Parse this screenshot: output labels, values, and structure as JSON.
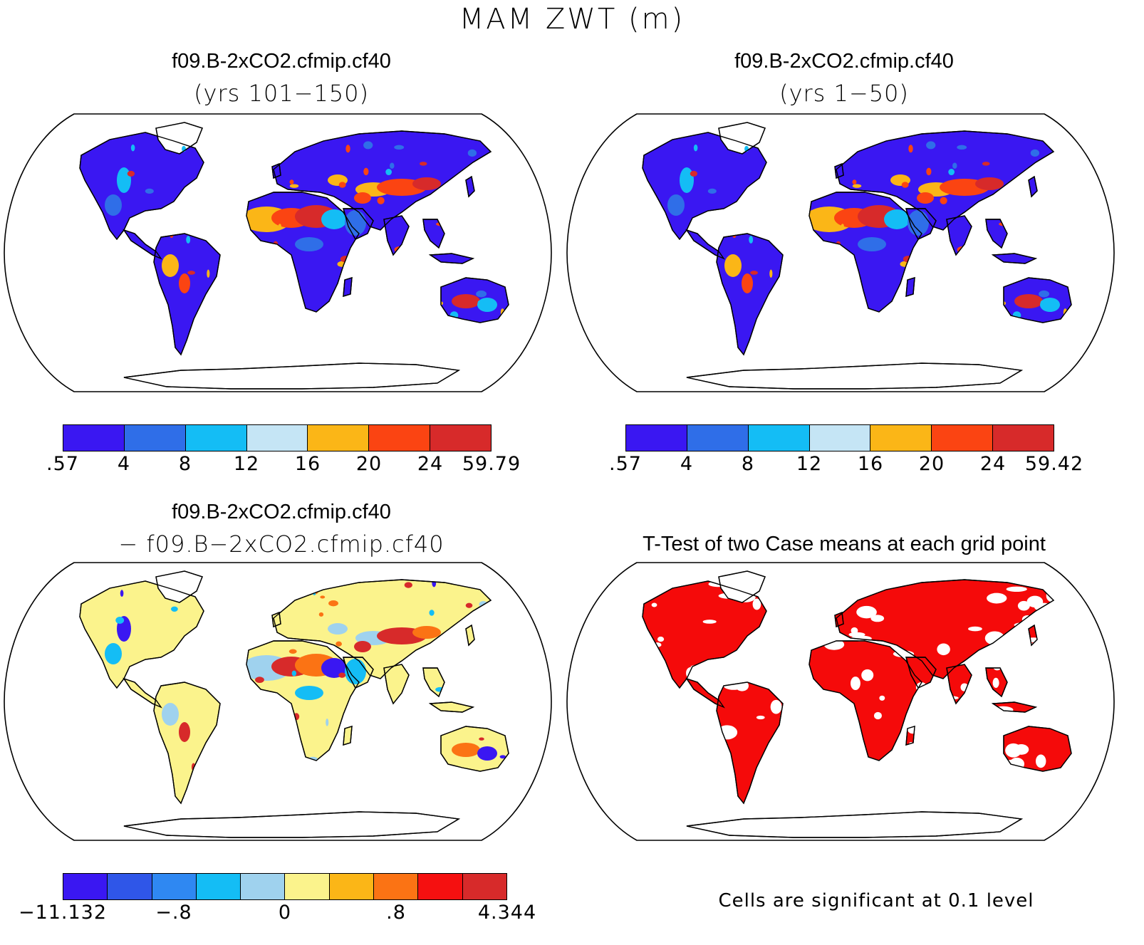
{
  "figure": {
    "title": "MAM ZWT (m)"
  },
  "panels": [
    {
      "id": "case1",
      "title": "f09.B-2xCO2.cfmip.cf40",
      "subtitle": "(yrs 101−150)",
      "colorbar": {
        "colors": [
          "#3a17f2",
          "#2f6ee8",
          "#14bdf5",
          "#c5e5f5",
          "#fbb617",
          "#fb4412",
          "#d72a2a"
        ],
        "labels": [
          ".57",
          "4",
          "8",
          "12",
          "16",
          "20",
          "24",
          "59.79"
        ]
      }
    },
    {
      "id": "case2",
      "title": "f09.B-2xCO2.cfmip.cf40",
      "subtitle": "(yrs 1−50)",
      "colorbar": {
        "colors": [
          "#3a17f2",
          "#2f6ee8",
          "#14bdf5",
          "#c5e5f5",
          "#fbb617",
          "#fb4412",
          "#d72a2a"
        ],
        "labels": [
          ".57",
          "4",
          "8",
          "12",
          "16",
          "20",
          "24",
          "59.42"
        ]
      }
    },
    {
      "id": "difference",
      "title": "f09.B-2xCO2.cfmip.cf40",
      "subtitle": "− f09.B−2xCO2.cfmip.cf40",
      "colorbar": {
        "colors": [
          "#3a17f2",
          "#2f56e8",
          "#2f88f2",
          "#14bdf5",
          "#9fd2ee",
          "#fbf38c",
          "#fbb617",
          "#fb7314",
          "#f51010",
          "#d72a2a"
        ],
        "labels": [
          "−11.132",
          "−.8",
          "0",
          ".8",
          "4.344"
        ]
      }
    },
    {
      "id": "ttest",
      "title": "T-Test of two Case means at each grid point",
      "note": "Cells are significant at 0.1 level",
      "significant_color": "#f50a0a"
    }
  ],
  "map": {
    "projection": "Robinson",
    "land_base_colors": {
      "case1": "#3a17f2",
      "case2": "#3a17f2",
      "difference": "#fbf38c",
      "ttest": "#f50a0a"
    },
    "highlight_colors": {
      "case": [
        "#fbb617",
        "#fb4412",
        "#d72a2a",
        "#14bdf5",
        "#2f6ee8"
      ],
      "difference": [
        "#9fd2ee",
        "#d72a2a",
        "#fb7314",
        "#3a17f2",
        "#14bdf5"
      ]
    }
  }
}
